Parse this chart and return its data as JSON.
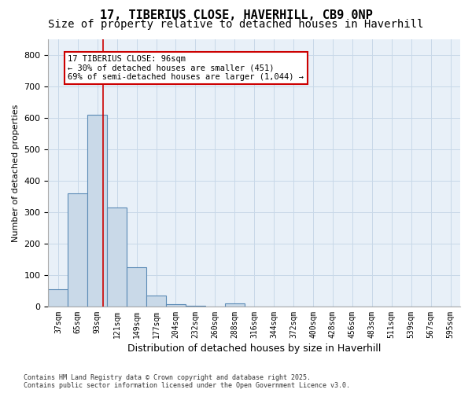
{
  "title_line1": "17, TIBERIUS CLOSE, HAVERHILL, CB9 0NP",
  "title_line2": "Size of property relative to detached houses in Haverhill",
  "xlabel": "Distribution of detached houses by size in Haverhill",
  "ylabel": "Number of detached properties",
  "bin_labels": [
    "37sqm",
    "65sqm",
    "93sqm",
    "121sqm",
    "149sqm",
    "177sqm",
    "204sqm",
    "232sqm",
    "260sqm",
    "288sqm",
    "316sqm",
    "344sqm",
    "372sqm",
    "400sqm",
    "428sqm",
    "456sqm",
    "483sqm",
    "511sqm",
    "539sqm",
    "567sqm",
    "595sqm"
  ],
  "bar_heights": [
    55,
    360,
    610,
    315,
    125,
    35,
    8,
    2,
    0,
    10,
    0,
    0,
    0,
    0,
    0,
    0,
    0,
    0,
    0,
    0,
    0
  ],
  "bar_color": "#c9d9e8",
  "bar_edge_color": "#5a8ab5",
  "vline_x": 2.3,
  "vline_color": "#cc0000",
  "annotation_text": "17 TIBERIUS CLOSE: 96sqm\n← 30% of detached houses are smaller (451)\n69% of semi-detached houses are larger (1,044) →",
  "annotation_box_color": "#cc0000",
  "ylim": [
    0,
    850
  ],
  "yticks": [
    0,
    100,
    200,
    300,
    400,
    500,
    600,
    700,
    800
  ],
  "grid_color": "#c8d8e8",
  "bg_color": "#e8f0f8",
  "footnote": "Contains HM Land Registry data © Crown copyright and database right 2025.\nContains public sector information licensed under the Open Government Licence v3.0.",
  "title_fontsize": 11,
  "subtitle_fontsize": 10
}
